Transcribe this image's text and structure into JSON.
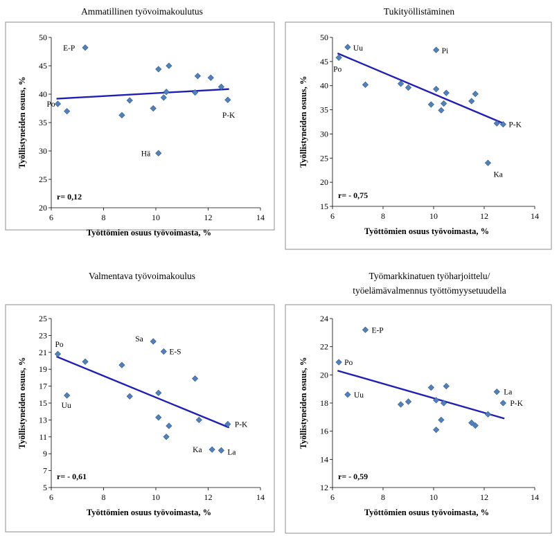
{
  "chart_data": [
    {
      "type": "scatter",
      "title_lines": [
        "Ammatillinen työvoimakoulutus"
      ],
      "xlabel": "Työttömien osuus työvoimasta, %",
      "ylabel": "Työllistyneiden osuus, %",
      "xlim": [
        6,
        14
      ],
      "ylim": [
        20,
        50
      ],
      "xticks": [
        6,
        8,
        10,
        12,
        14
      ],
      "yticks": [
        20,
        25,
        30,
        35,
        40,
        45,
        50
      ],
      "r_label": "r= 0,12",
      "trendline": {
        "x": [
          6.2,
          12.8
        ],
        "y": [
          39.2,
          40.9
        ]
      },
      "points": [
        {
          "x": 6.25,
          "y": 38.3,
          "label": "Po"
        },
        {
          "x": 6.6,
          "y": 37.0,
          "label": ""
        },
        {
          "x": 7.3,
          "y": 48.2,
          "label": "E-P"
        },
        {
          "x": 8.7,
          "y": 36.3,
          "label": ""
        },
        {
          "x": 9.0,
          "y": 38.9,
          "label": ""
        },
        {
          "x": 9.9,
          "y": 37.5,
          "label": ""
        },
        {
          "x": 10.1,
          "y": 44.4,
          "label": ""
        },
        {
          "x": 10.1,
          "y": 29.6,
          "label": "Hä"
        },
        {
          "x": 10.3,
          "y": 39.4,
          "label": ""
        },
        {
          "x": 10.4,
          "y": 40.4,
          "label": ""
        },
        {
          "x": 10.5,
          "y": 45.0,
          "label": ""
        },
        {
          "x": 11.5,
          "y": 40.3,
          "label": ""
        },
        {
          "x": 11.6,
          "y": 43.2,
          "label": ""
        },
        {
          "x": 12.1,
          "y": 42.9,
          "label": ""
        },
        {
          "x": 12.5,
          "y": 41.3,
          "label": ""
        },
        {
          "x": 12.75,
          "y": 39.0,
          "label": "P-K"
        }
      ]
    },
    {
      "type": "scatter",
      "title_lines": [
        "Tukityöllistäminen"
      ],
      "xlabel": "Työttömien osuus työvoimasta, %",
      "ylabel": "Työllistyneiden osuus, %",
      "xlim": [
        6,
        14
      ],
      "ylim": [
        15,
        50
      ],
      "xticks": [
        6,
        8,
        10,
        12,
        14
      ],
      "yticks": [
        15,
        20,
        25,
        30,
        35,
        40,
        45,
        50
      ],
      "r_label": "r= - 0,75",
      "trendline": {
        "x": [
          6.2,
          12.8
        ],
        "y": [
          46.7,
          32.1
        ]
      },
      "points": [
        {
          "x": 6.25,
          "y": 45.8,
          "label": "Po"
        },
        {
          "x": 6.6,
          "y": 48.0,
          "label": "Uu"
        },
        {
          "x": 7.3,
          "y": 40.2,
          "label": ""
        },
        {
          "x": 8.7,
          "y": 40.4,
          "label": ""
        },
        {
          "x": 9.0,
          "y": 39.6,
          "label": ""
        },
        {
          "x": 9.9,
          "y": 36.1,
          "label": ""
        },
        {
          "x": 10.1,
          "y": 39.3,
          "label": ""
        },
        {
          "x": 10.1,
          "y": 47.4,
          "label": "Pi"
        },
        {
          "x": 10.3,
          "y": 34.9,
          "label": ""
        },
        {
          "x": 10.4,
          "y": 36.3,
          "label": ""
        },
        {
          "x": 10.5,
          "y": 38.5,
          "label": ""
        },
        {
          "x": 11.5,
          "y": 36.8,
          "label": ""
        },
        {
          "x": 11.65,
          "y": 38.3,
          "label": ""
        },
        {
          "x": 12.15,
          "y": 24.0,
          "label": "Ka"
        },
        {
          "x": 12.5,
          "y": 32.2,
          "label": ""
        },
        {
          "x": 12.75,
          "y": 32.0,
          "label": "P-K"
        }
      ]
    },
    {
      "type": "scatter",
      "title_lines": [
        "Valmentava työvoimakoulus"
      ],
      "xlabel": "Työttömien osuus työvoimasta, %",
      "ylabel": "Työllistyneiden osuus, %",
      "xlim": [
        6,
        14
      ],
      "ylim": [
        5,
        25
      ],
      "xticks": [
        6,
        8,
        10,
        12,
        14
      ],
      "yticks": [
        5,
        7,
        9,
        11,
        13,
        15,
        17,
        19,
        21,
        23,
        25
      ],
      "r_label": "r= - 0,61",
      "trendline": {
        "x": [
          6.2,
          12.8
        ],
        "y": [
          20.5,
          12.1
        ]
      },
      "points": [
        {
          "x": 6.25,
          "y": 20.8,
          "label": "Po"
        },
        {
          "x": 6.6,
          "y": 15.9,
          "label": "Uu"
        },
        {
          "x": 7.3,
          "y": 19.9,
          "label": ""
        },
        {
          "x": 8.7,
          "y": 19.5,
          "label": ""
        },
        {
          "x": 9.0,
          "y": 15.8,
          "label": ""
        },
        {
          "x": 9.9,
          "y": 22.3,
          "label": "Sa"
        },
        {
          "x": 10.1,
          "y": 16.2,
          "label": ""
        },
        {
          "x": 10.1,
          "y": 13.3,
          "label": ""
        },
        {
          "x": 10.3,
          "y": 21.1,
          "label": "E-S"
        },
        {
          "x": 10.4,
          "y": 11.0,
          "label": ""
        },
        {
          "x": 10.5,
          "y": 12.3,
          "label": ""
        },
        {
          "x": 11.5,
          "y": 17.9,
          "label": ""
        },
        {
          "x": 11.65,
          "y": 13.0,
          "label": ""
        },
        {
          "x": 12.15,
          "y": 9.5,
          "label": "Ka"
        },
        {
          "x": 12.5,
          "y": 9.4,
          "label": "La"
        },
        {
          "x": 12.75,
          "y": 12.5,
          "label": "P-K"
        }
      ]
    },
    {
      "type": "scatter",
      "title_lines": [
        "Työmarkkinatuen työharjoittelu/",
        "työelämävalmennus työttömyysetuudella"
      ],
      "xlabel": "Työttömien osuus työvoimasta, %",
      "ylabel": "Työllistyneiden osuus, %",
      "xlim": [
        6,
        14
      ],
      "ylim": [
        12,
        24
      ],
      "xticks": [
        6,
        8,
        10,
        12,
        14
      ],
      "yticks": [
        12,
        14,
        16,
        18,
        20,
        22,
        24
      ],
      "r_label": "r= - 0,59",
      "trendline": {
        "x": [
          6.2,
          12.8
        ],
        "y": [
          20.3,
          16.9
        ]
      },
      "points": [
        {
          "x": 6.25,
          "y": 20.9,
          "label": "Po"
        },
        {
          "x": 6.6,
          "y": 18.6,
          "label": "Uu"
        },
        {
          "x": 7.3,
          "y": 23.2,
          "label": "E-P"
        },
        {
          "x": 8.7,
          "y": 17.9,
          "label": ""
        },
        {
          "x": 9.0,
          "y": 18.1,
          "label": ""
        },
        {
          "x": 9.9,
          "y": 19.1,
          "label": ""
        },
        {
          "x": 10.1,
          "y": 18.2,
          "label": ""
        },
        {
          "x": 10.1,
          "y": 16.1,
          "label": ""
        },
        {
          "x": 10.3,
          "y": 16.8,
          "label": ""
        },
        {
          "x": 10.4,
          "y": 18.0,
          "label": ""
        },
        {
          "x": 10.5,
          "y": 19.2,
          "label": ""
        },
        {
          "x": 11.5,
          "y": 16.6,
          "label": ""
        },
        {
          "x": 11.65,
          "y": 16.4,
          "label": ""
        },
        {
          "x": 12.15,
          "y": 17.2,
          "label": ""
        },
        {
          "x": 12.5,
          "y": 18.8,
          "label": "La"
        },
        {
          "x": 12.75,
          "y": 18.0,
          "label": "P-K"
        }
      ]
    }
  ]
}
